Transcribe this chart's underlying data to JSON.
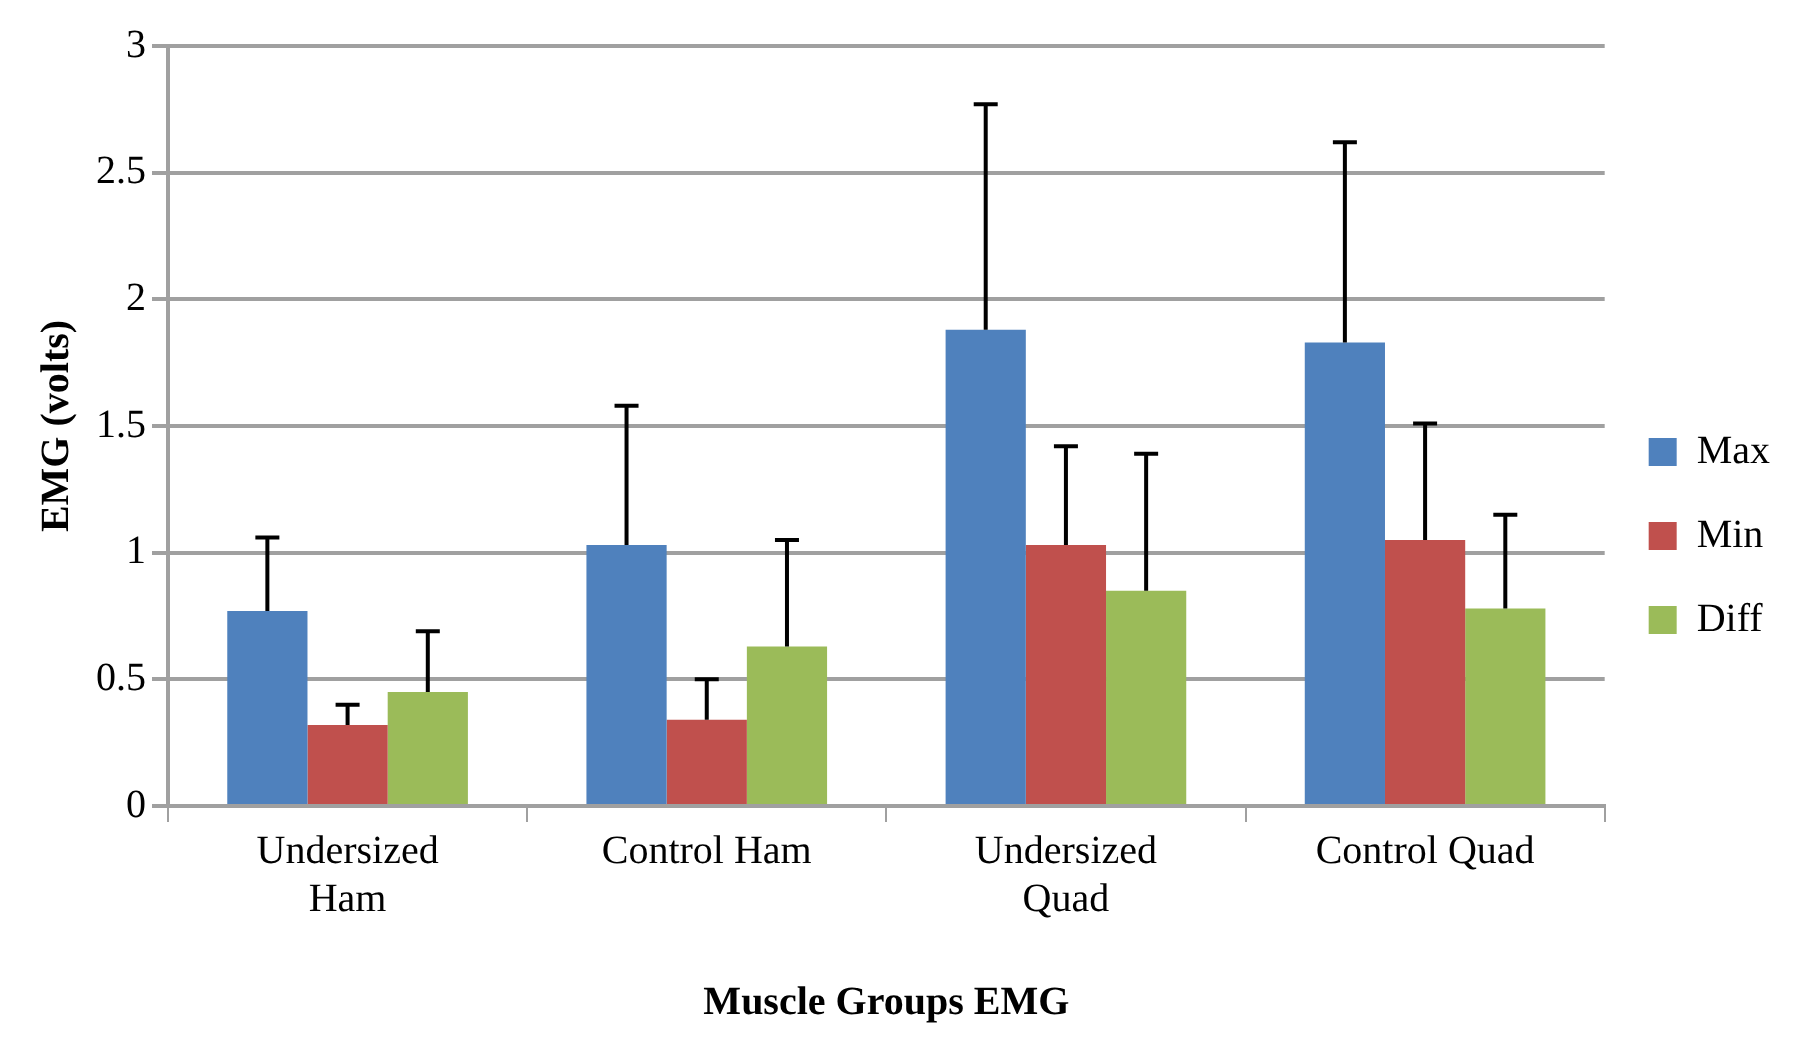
{
  "chart_data": {
    "type": "bar",
    "xlabel": "Muscle Groups EMG",
    "ylabel": "EMG (volts)",
    "categories": [
      "Undersized Ham",
      "Control Ham",
      "Undersized Quad",
      "Control Quad"
    ],
    "series": [
      {
        "name": "Max",
        "color": "#4f81bd",
        "values": [
          0.77,
          1.03,
          1.88,
          1.83
        ],
        "errors": [
          [
            0.77,
            1.06
          ],
          [
            1.03,
            1.58
          ],
          [
            1.88,
            2.77
          ],
          [
            1.83,
            2.62
          ]
        ]
      },
      {
        "name": "Min",
        "color": "#c0504d",
        "values": [
          0.32,
          0.34,
          1.03,
          1.05
        ],
        "errors": [
          [
            0.32,
            0.4
          ],
          [
            0.34,
            0.5
          ],
          [
            1.03,
            1.42
          ],
          [
            1.05,
            1.51
          ]
        ]
      },
      {
        "name": "Diff",
        "color": "#9bbb59",
        "values": [
          0.45,
          0.63,
          0.85,
          0.78
        ],
        "errors": [
          [
            0.45,
            0.69
          ],
          [
            0.63,
            1.05
          ],
          [
            0.85,
            1.39
          ],
          [
            0.78,
            1.15
          ]
        ]
      }
    ],
    "ylim": [
      0,
      3
    ],
    "yticks": [
      0,
      0.5,
      1,
      1.5,
      2,
      2.5,
      3
    ],
    "grid": "y",
    "legend": "right"
  }
}
